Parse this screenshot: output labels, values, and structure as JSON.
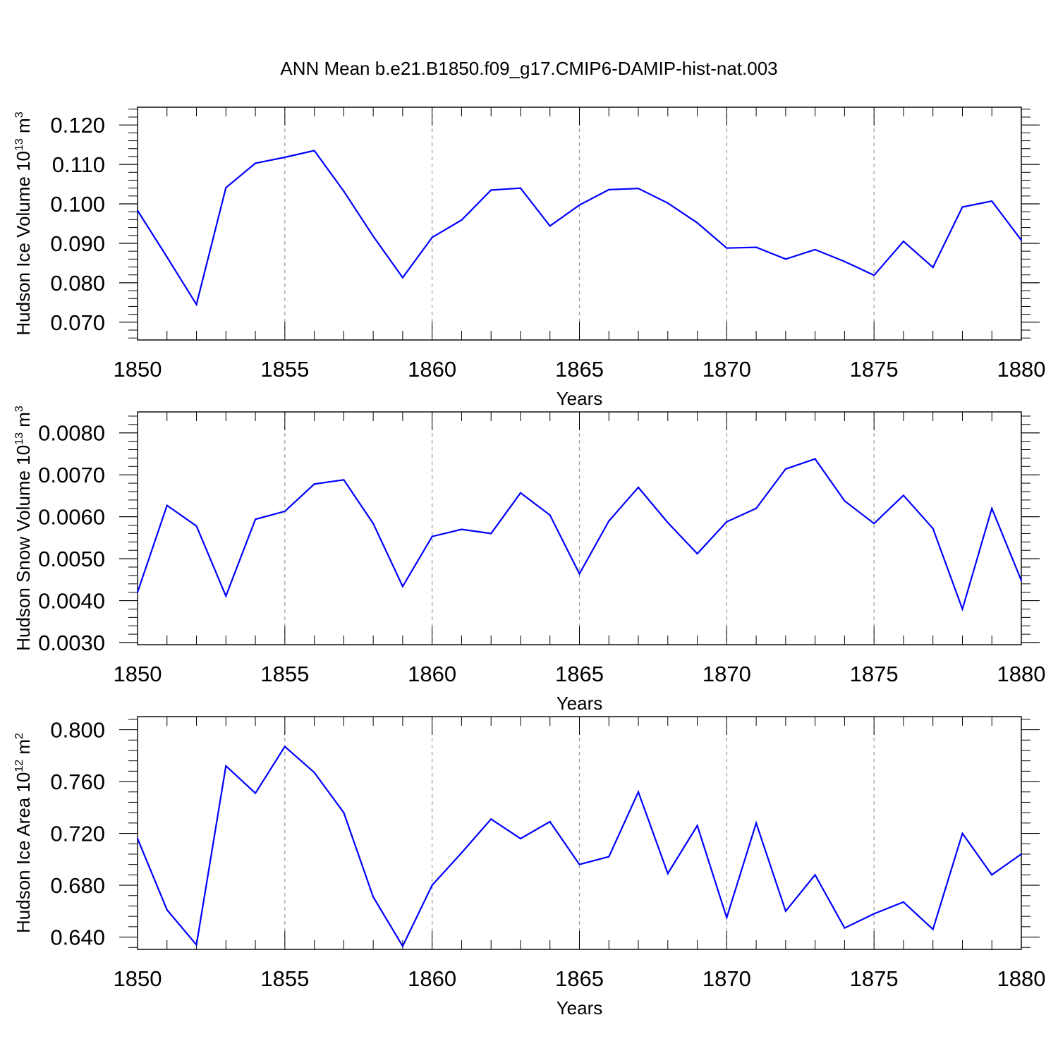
{
  "title": "ANN Mean b.e21.B1850.f09_g17.CMIP6-DAMIP-hist-nat.003",
  "colors": {
    "line": "#0000ff",
    "axis": "#000000",
    "grid": "#999999"
  },
  "chart_data": [
    {
      "type": "line",
      "xlabel": "Years",
      "ylabel": {
        "main": "Hudson Ice Volume 10",
        "sup": "13",
        "unit": " m",
        "unit_sup": "3"
      },
      "xlim": [
        1850,
        1880
      ],
      "ylim": [
        0.0655,
        0.1245
      ],
      "xticks": [
        1850,
        1855,
        1860,
        1865,
        1870,
        1875,
        1880
      ],
      "xtick_labels": [
        "1850",
        "1855",
        "1860",
        "1865",
        "1870",
        "1875",
        "1880"
      ],
      "yticks": [
        0.07,
        0.08,
        0.09,
        0.1,
        0.11,
        0.12
      ],
      "ytick_labels": [
        "0.070",
        "0.080",
        "0.090",
        "0.100",
        "0.110",
        "0.120"
      ],
      "y_minor_step": 0.002,
      "x": [
        1850,
        1851,
        1852,
        1853,
        1854,
        1855,
        1856,
        1857,
        1858,
        1859,
        1860,
        1861,
        1862,
        1863,
        1864,
        1865,
        1866,
        1867,
        1868,
        1869,
        1870,
        1871,
        1872,
        1873,
        1874,
        1875,
        1876,
        1877,
        1878,
        1879,
        1880
      ],
      "values": [
        0.0983,
        0.0865,
        0.0745,
        0.1041,
        0.1103,
        0.1118,
        0.1135,
        0.1032,
        0.0918,
        0.0813,
        0.0915,
        0.0959,
        0.1035,
        0.104,
        0.0944,
        0.0997,
        0.1036,
        0.1039,
        0.1002,
        0.0952,
        0.0888,
        0.089,
        0.086,
        0.0884,
        0.0854,
        0.0819,
        0.0905,
        0.0839,
        0.0992,
        0.1007,
        0.0908
      ]
    },
    {
      "type": "line",
      "xlabel": "Years",
      "ylabel": {
        "main": "Hudson Snow Volume 10",
        "sup": "13",
        "unit": " m",
        "unit_sup": "3"
      },
      "xlim": [
        1850,
        1880
      ],
      "ylim": [
        0.00295,
        0.0085
      ],
      "xticks": [
        1850,
        1855,
        1860,
        1865,
        1870,
        1875,
        1880
      ],
      "xtick_labels": [
        "1850",
        "1855",
        "1860",
        "1865",
        "1870",
        "1875",
        "1880"
      ],
      "yticks": [
        0.003,
        0.004,
        0.005,
        0.006,
        0.007,
        0.008
      ],
      "ytick_labels": [
        "0.0030",
        "0.0040",
        "0.0050",
        "0.0060",
        "0.0070",
        "0.0080"
      ],
      "y_minor_step": 0.0002,
      "x": [
        1850,
        1851,
        1852,
        1853,
        1854,
        1855,
        1856,
        1857,
        1858,
        1859,
        1860,
        1861,
        1862,
        1863,
        1864,
        1865,
        1866,
        1867,
        1868,
        1869,
        1870,
        1871,
        1872,
        1873,
        1874,
        1875,
        1876,
        1877,
        1878,
        1879,
        1880
      ],
      "values": [
        0.0042,
        0.00627,
        0.00578,
        0.00411,
        0.00594,
        0.00613,
        0.00678,
        0.00688,
        0.00584,
        0.00434,
        0.00553,
        0.0057,
        0.0056,
        0.00657,
        0.00604,
        0.00464,
        0.0059,
        0.0067,
        0.00586,
        0.00512,
        0.00588,
        0.0062,
        0.00714,
        0.00738,
        0.00638,
        0.00584,
        0.00651,
        0.00572,
        0.0038,
        0.0062,
        0.00448
      ]
    },
    {
      "type": "line",
      "xlabel": "Years",
      "ylabel": {
        "main": "Hudson Ice Area 10",
        "sup": "12",
        "unit": " m",
        "unit_sup": "2"
      },
      "xlim": [
        1850,
        1880
      ],
      "ylim": [
        0.6305,
        0.8101
      ],
      "xticks": [
        1850,
        1855,
        1860,
        1865,
        1870,
        1875,
        1880
      ],
      "xtick_labels": [
        "1850",
        "1855",
        "1860",
        "1865",
        "1870",
        "1875",
        "1880"
      ],
      "yticks": [
        0.64,
        0.68,
        0.72,
        0.76,
        0.8
      ],
      "ytick_labels": [
        "0.640",
        "0.680",
        "0.720",
        "0.760",
        "0.800"
      ],
      "y_minor_step": 0.008,
      "x": [
        1850,
        1851,
        1852,
        1853,
        1854,
        1855,
        1856,
        1857,
        1858,
        1859,
        1860,
        1861,
        1862,
        1863,
        1864,
        1865,
        1866,
        1867,
        1868,
        1869,
        1870,
        1871,
        1872,
        1873,
        1874,
        1875,
        1876,
        1877,
        1878,
        1879,
        1880
      ],
      "values": [
        0.716,
        0.661,
        0.634,
        0.772,
        0.751,
        0.787,
        0.767,
        0.736,
        0.671,
        0.633,
        0.68,
        0.705,
        0.731,
        0.716,
        0.729,
        0.696,
        0.702,
        0.752,
        0.689,
        0.726,
        0.655,
        0.728,
        0.66,
        0.688,
        0.647,
        0.658,
        0.667,
        0.646,
        0.72,
        0.688,
        0.704
      ]
    }
  ]
}
